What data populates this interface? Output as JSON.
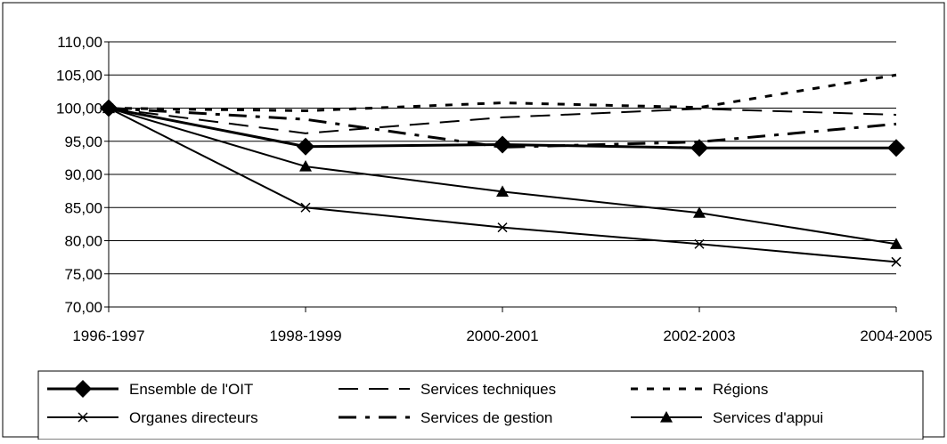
{
  "chart_data": {
    "type": "line",
    "categories": [
      "1996-1997",
      "1998-1999",
      "2000-2001",
      "2002-2003",
      "2004-2005"
    ],
    "ylim": [
      70,
      110
    ],
    "yticks": [
      "70,00",
      "75,00",
      "80,00",
      "85,00",
      "90,00",
      "95,00",
      "100,00",
      "105,00",
      "110,00"
    ],
    "ytick_values": [
      70,
      75,
      80,
      85,
      90,
      95,
      100,
      105,
      110
    ],
    "grid": true,
    "legend_position": "bottom",
    "series": [
      {
        "name": "Ensemble de l'OIT",
        "values": [
          100,
          94.2,
          94.5,
          94.0,
          94.0
        ],
        "dash": "solid",
        "marker": "diamond",
        "width": 3
      },
      {
        "name": "Services techniques",
        "values": [
          100,
          96.2,
          98.6,
          99.9,
          99.0
        ],
        "dash": "longdash",
        "marker": "none",
        "width": 2
      },
      {
        "name": "Régions",
        "values": [
          100,
          99.6,
          100.8,
          100.1,
          105.0
        ],
        "dash": "shortdash",
        "marker": "none",
        "width": 3
      },
      {
        "name": "Organes directeurs",
        "values": [
          100,
          85.0,
          82.0,
          79.5,
          76.8
        ],
        "dash": "solid",
        "marker": "x",
        "width": 2
      },
      {
        "name": "Services de gestion",
        "values": [
          100,
          98.3,
          94.1,
          94.9,
          97.6
        ],
        "dash": "dashdot",
        "marker": "none",
        "width": 3
      },
      {
        "name": "Services d'appui",
        "values": [
          100,
          91.2,
          87.4,
          84.2,
          79.5
        ],
        "dash": "solid",
        "marker": "triangle",
        "width": 2
      }
    ]
  }
}
